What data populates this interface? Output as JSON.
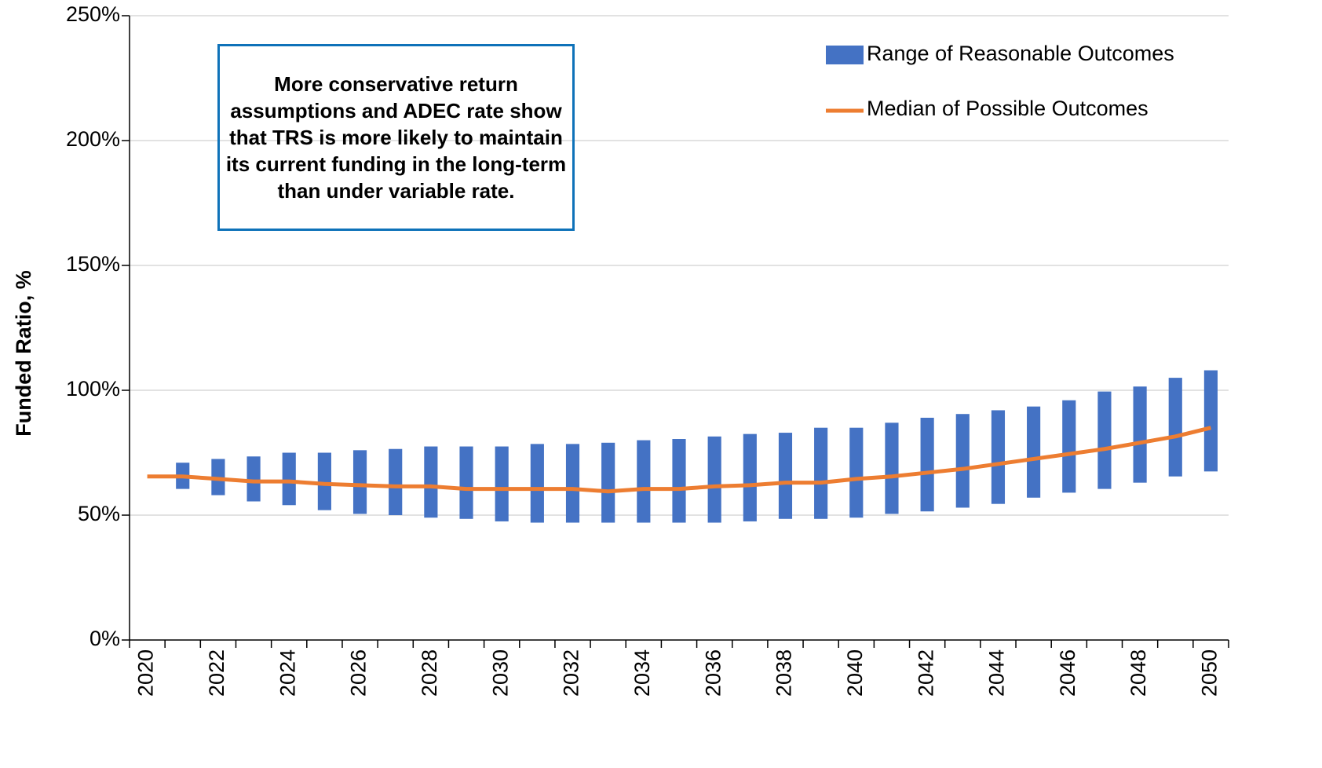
{
  "chart_data": {
    "type": "range-bar-line",
    "y_label": "Funded Ratio, %",
    "annotation": "More conservative return assumptions and ADEC rate show that TRS is more likely to maintain its current funding in the long-term than under variable rate.",
    "categories": [
      "2020",
      null,
      "2022",
      null,
      "2024",
      null,
      "2026",
      null,
      "2028",
      null,
      "2030",
      null,
      "2032",
      null,
      "2034",
      null,
      "2036",
      null,
      "2038",
      null,
      "2040",
      null,
      "2042",
      null,
      "2044",
      null,
      "2046",
      null,
      "2048",
      null,
      "2050"
    ],
    "series": [
      {
        "name": "Range of Reasonable Outcomes",
        "color": "#4472c4",
        "low": [
          null,
          60.5,
          58,
          55.5,
          54,
          52,
          50.5,
          50,
          49,
          48.5,
          47.5,
          47,
          47,
          47,
          47,
          47,
          47,
          47.5,
          48.5,
          48.5,
          49,
          50.5,
          51.5,
          53,
          54.5,
          57,
          59,
          60.5,
          63,
          65.5,
          67.5
        ],
        "high": [
          null,
          71,
          72.5,
          73.5,
          75,
          75,
          76,
          76.5,
          77.5,
          77.5,
          77.5,
          78.5,
          78.5,
          79,
          80,
          80.5,
          81.5,
          82.5,
          83,
          85,
          85,
          87,
          89,
          90.5,
          92,
          93.5,
          96,
          99.5,
          101.5,
          105,
          108
        ]
      },
      {
        "name": "Median of Possible Outcomes",
        "color": "#ed7d31",
        "values": [
          65.5,
          65.5,
          64.5,
          63.5,
          63.5,
          62.5,
          62,
          61.5,
          61.5,
          60.5,
          60.5,
          60.5,
          60.5,
          59.5,
          60.5,
          60.5,
          61.5,
          62,
          63,
          63,
          64.5,
          65.5,
          67,
          68.5,
          70.5,
          72.5,
          74.5,
          76.5,
          79,
          81.5,
          85
        ]
      }
    ],
    "ylim": [
      0,
      250
    ],
    "yticks": [
      {
        "value": 0,
        "label": "0%"
      },
      {
        "value": 50,
        "label": "50%"
      },
      {
        "value": 100,
        "label": "100%"
      },
      {
        "value": 150,
        "label": "150%"
      },
      {
        "value": 200,
        "label": "200%"
      },
      {
        "value": 250,
        "label": "250%"
      }
    ],
    "grid": true,
    "legend": "top-right"
  }
}
